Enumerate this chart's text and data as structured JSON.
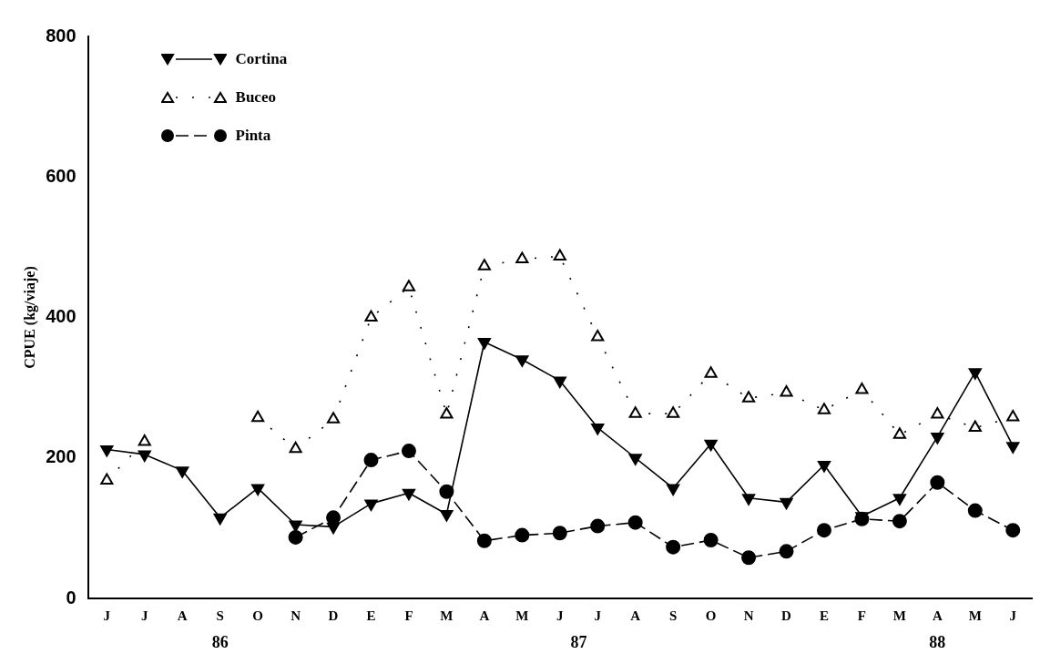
{
  "chart_data": {
    "type": "line",
    "ylabel": "CPUE (kg/viaje)",
    "categories": [
      "J",
      "J",
      "A",
      "S",
      "O",
      "N",
      "D",
      "E",
      "F",
      "M",
      "A",
      "M",
      "J",
      "J",
      "A",
      "S",
      "O",
      "N",
      "D",
      "E",
      "F",
      "M",
      "A",
      "M",
      "J"
    ],
    "series": [
      {
        "name": "Cortina",
        "color": "#000000",
        "marker": "triangle-down",
        "line_style": "solid",
        "values": [
          212,
          205,
          182,
          115,
          157,
          105,
          102,
          135,
          150,
          120,
          365,
          340,
          310,
          243,
          200,
          157,
          220,
          143,
          137,
          190,
          117,
          143,
          230,
          322,
          217
        ]
      },
      {
        "name": "Buceo",
        "color": "#000000",
        "marker": "triangle-open",
        "line_style": "dotted",
        "values": [
          168,
          223,
          null,
          null,
          257,
          213,
          255,
          400,
          443,
          262,
          473,
          483,
          487,
          372,
          263,
          263,
          320,
          285,
          293,
          268,
          297,
          233,
          262,
          243,
          258
        ]
      },
      {
        "name": "Pinta",
        "color": "#000000",
        "marker": "circle",
        "line_style": "dashed",
        "values": [
          null,
          null,
          null,
          null,
          null,
          87,
          115,
          197,
          210,
          152,
          82,
          90,
          93,
          103,
          108,
          73,
          83,
          58,
          67,
          97,
          113,
          110,
          165,
          125,
          97
        ]
      }
    ],
    "ylim": [
      0,
      800
    ],
    "yticks": [
      0,
      200,
      400,
      600,
      800
    ],
    "grid": false,
    "legend": "top left",
    "annotations": [
      "86",
      "87",
      "88"
    ]
  }
}
